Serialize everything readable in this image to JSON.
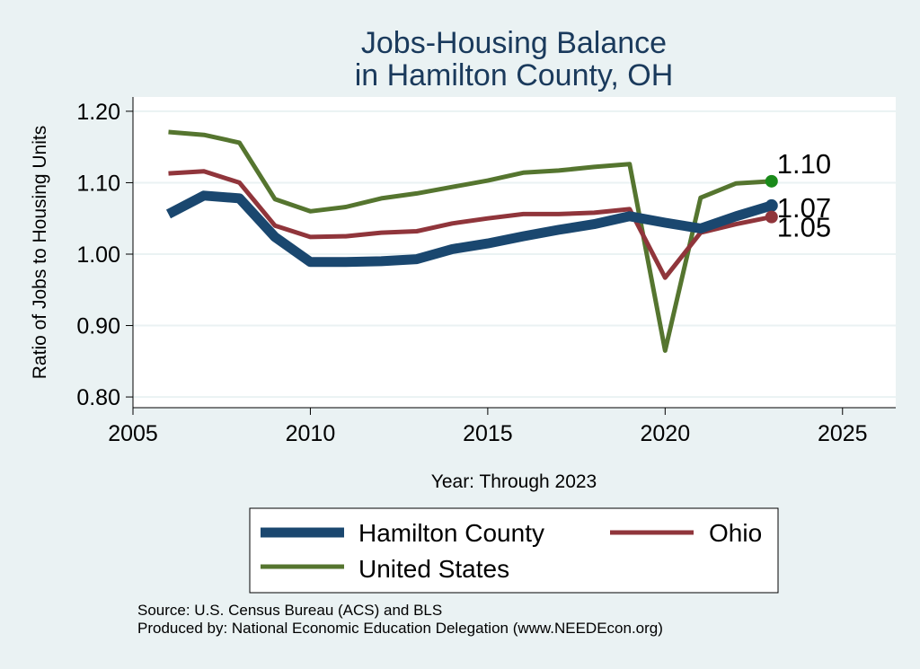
{
  "chart_data": {
    "type": "line",
    "title": [
      "Jobs-Housing Balance",
      "in Hamilton County, OH"
    ],
    "xlabel": "Year: Through 2023",
    "ylabel": "Ratio of Jobs to Housing Units",
    "xlim": [
      2005,
      2026.5
    ],
    "ylim": [
      0.785,
      1.22
    ],
    "xticks": [
      2005,
      2010,
      2015,
      2020,
      2025
    ],
    "yticks": [
      0.8,
      0.9,
      1.0,
      1.1,
      1.2
    ],
    "xtick_labels": [
      "2005",
      "2010",
      "2015",
      "2020",
      "2025"
    ],
    "ytick_labels": [
      "0.80",
      "0.90",
      "1.00",
      "1.10",
      "1.20"
    ],
    "grid": true,
    "x": [
      2006,
      2007,
      2008,
      2009,
      2010,
      2011,
      2012,
      2013,
      2014,
      2015,
      2016,
      2017,
      2018,
      2019,
      2020,
      2021,
      2022,
      2023
    ],
    "series": [
      {
        "name": "Hamilton County",
        "color": "#1a476f",
        "values": [
          1.056,
          1.082,
          1.078,
          1.024,
          0.989,
          0.989,
          0.99,
          0.993,
          1.007,
          1.015,
          1.025,
          1.034,
          1.042,
          1.053,
          1.044,
          1.036,
          1.053,
          1.068
        ],
        "end_label": "1.07"
      },
      {
        "name": "Ohio",
        "color": "#90353b",
        "values": [
          1.113,
          1.116,
          1.1,
          1.04,
          1.024,
          1.025,
          1.03,
          1.032,
          1.043,
          1.05,
          1.056,
          1.056,
          1.058,
          1.063,
          0.967,
          1.03,
          1.042,
          1.052
        ],
        "end_label": "1.05"
      },
      {
        "name": "United States",
        "color": "#55752f",
        "values": [
          1.171,
          1.167,
          1.156,
          1.077,
          1.06,
          1.066,
          1.078,
          1.085,
          1.094,
          1.103,
          1.114,
          1.117,
          1.122,
          1.126,
          0.865,
          1.079,
          1.099,
          1.102
        ],
        "end_label": "1.10",
        "end_marker_color": "#1a8a1a"
      }
    ],
    "legend": {
      "placement": "bottom",
      "entries": [
        "Hamilton County",
        "Ohio",
        "United States"
      ]
    }
  },
  "source": {
    "line1": "Source: U.S. Census Bureau (ACS) and BLS",
    "line2": "Produced by: National Economic Education Delegation (www.NEEDEcon.org)"
  }
}
